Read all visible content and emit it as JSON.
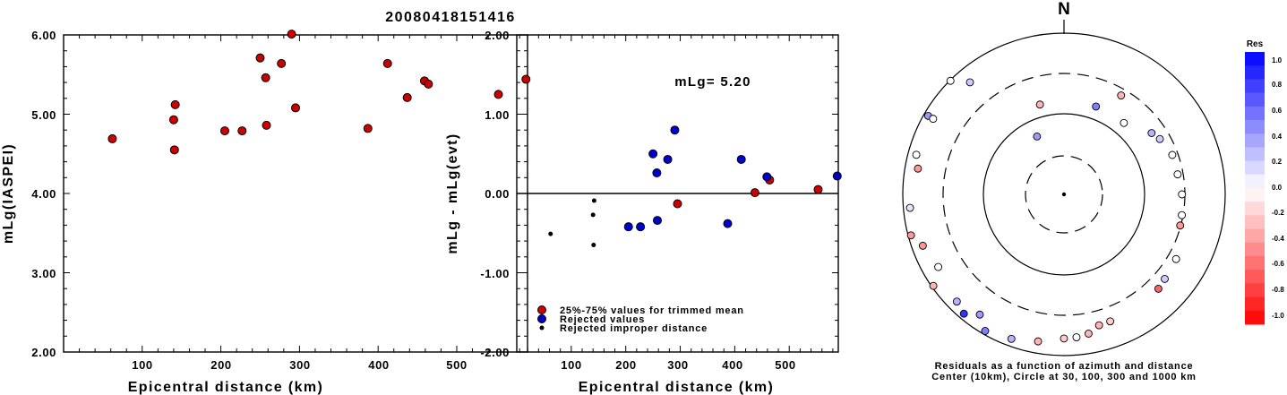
{
  "chart_data": [
    {
      "type": "scatter",
      "title": "20080418151416",
      "xlabel": "Epicentral distance (km)",
      "ylabel": "mLg(IASPEI)",
      "xlim": [
        0,
        590
      ],
      "ylim": [
        2.0,
        6.0
      ],
      "xticks": [
        "100",
        "200",
        "300",
        "400",
        "500"
      ],
      "yticks": [
        "2.00",
        "3.00",
        "4.00",
        "5.00",
        "6.00"
      ],
      "marker_color": "#cc0000",
      "points": [
        [
          62,
          4.69
        ],
        [
          140,
          4.93
        ],
        [
          142,
          5.12
        ],
        [
          141,
          4.55
        ],
        [
          205,
          4.79
        ],
        [
          227,
          4.79
        ],
        [
          250,
          5.71
        ],
        [
          257,
          5.46
        ],
        [
          258,
          4.86
        ],
        [
          277,
          5.64
        ],
        [
          290,
          6.01
        ],
        [
          295,
          5.08
        ],
        [
          387,
          4.82
        ],
        [
          412,
          5.64
        ],
        [
          437,
          5.21
        ],
        [
          459,
          5.42
        ],
        [
          464,
          5.38
        ],
        [
          553,
          5.25
        ],
        [
          588,
          5.44
        ]
      ]
    },
    {
      "type": "scatter",
      "xlabel": "Epicentral distance (km)",
      "ylabel": "mLg - mLg(evt)",
      "xlim": [
        0,
        590
      ],
      "ylim": [
        -2.0,
        2.0
      ],
      "xticks": [
        "100",
        "200",
        "300",
        "400",
        "500"
      ],
      "yticks": [
        "-2.00",
        "-1.00",
        "0.00",
        "1.00",
        "2.00"
      ],
      "annotation": "mLg= 5.20",
      "zero_line": true,
      "legend_position": "bottom-left",
      "series": [
        {
          "name": "25%-75% values for trimmed mean",
          "color": "#cc0000",
          "marker": "circle",
          "points": [
            [
              295,
              -0.13
            ],
            [
              437,
              0.01
            ],
            [
              464,
              0.17
            ],
            [
              553,
              0.05
            ]
          ]
        },
        {
          "name": "Rejected values",
          "color": "#0000cc",
          "marker": "circle",
          "points": [
            [
              205,
              -0.42
            ],
            [
              227,
              -0.42
            ],
            [
              250,
              0.5
            ],
            [
              257,
              0.26
            ],
            [
              258,
              -0.34
            ],
            [
              277,
              0.43
            ],
            [
              290,
              0.8
            ],
            [
              387,
              -0.38
            ],
            [
              412,
              0.43
            ],
            [
              459,
              0.21
            ],
            [
              588,
              0.22
            ]
          ]
        },
        {
          "name": "Rejected improper distance",
          "color": "#000000",
          "marker": "dot",
          "points": [
            [
              62,
              -0.51
            ],
            [
              140,
              -0.27
            ],
            [
              142,
              -0.09
            ],
            [
              141,
              -0.65
            ]
          ]
        }
      ]
    },
    {
      "type": "scatter",
      "subtype": "polar",
      "north_label": "N",
      "caption_lines": [
        "Residuals as a function of azimuth and distance",
        "Center (10km), Circle at 30, 100, 300 and 1000 km"
      ],
      "rings_km": [
        30,
        100,
        300,
        1000
      ],
      "colorbar": {
        "title": "Res",
        "ticks": [
          "1.0",
          "0.8",
          "0.6",
          "0.4",
          "0.2",
          "0.0",
          "-0.2",
          "-0.4",
          "-0.6",
          "-0.8",
          "-1.0"
        ],
        "max_color": "#0000ff",
        "zero_color": "#ffffff",
        "min_color": "#ff0000"
      },
      "stations": [
        {
          "azimuth_deg": 335,
          "residual": 0.4
        },
        {
          "azimuth_deg": 345,
          "residual": -0.3
        },
        {
          "azimuth_deg": 20,
          "residual": 0.5
        },
        {
          "azimuth_deg": 40,
          "residual": 0.0
        },
        {
          "azimuth_deg": 55,
          "residual": 0.3
        },
        {
          "azimuth_deg": 60,
          "residual": 0.2
        },
        {
          "azimuth_deg": 30,
          "residual": -0.3
        },
        {
          "azimuth_deg": 70,
          "residual": 0.0
        },
        {
          "azimuth_deg": 80,
          "residual": 0.0
        },
        {
          "azimuth_deg": 90,
          "residual": 0.0
        },
        {
          "azimuth_deg": 100,
          "residual": 0.0
        },
        {
          "azimuth_deg": 105,
          "residual": -0.4
        },
        {
          "azimuth_deg": 120,
          "residual": 0.0
        },
        {
          "azimuth_deg": 130,
          "residual": 0.2
        },
        {
          "azimuth_deg": 135,
          "residual": -0.6
        },
        {
          "azimuth_deg": 160,
          "residual": -0.2
        },
        {
          "azimuth_deg": 165,
          "residual": -0.3
        },
        {
          "azimuth_deg": 170,
          "residual": -0.3
        },
        {
          "azimuth_deg": 175,
          "residual": 0.0
        },
        {
          "azimuth_deg": 180,
          "residual": -0.2
        },
        {
          "azimuth_deg": 190,
          "residual": -0.3
        },
        {
          "azimuth_deg": 200,
          "residual": 0.3
        },
        {
          "azimuth_deg": 210,
          "residual": 0.5
        },
        {
          "azimuth_deg": 215,
          "residual": 0.4
        },
        {
          "azimuth_deg": 225,
          "residual": 0.3
        },
        {
          "azimuth_deg": 220,
          "residual": 0.8
        },
        {
          "azimuth_deg": 235,
          "residual": -0.3
        },
        {
          "azimuth_deg": 240,
          "residual": 0.0
        },
        {
          "azimuth_deg": 250,
          "residual": -0.4
        },
        {
          "azimuth_deg": 265,
          "residual": 0.1
        },
        {
          "azimuth_deg": 255,
          "residual": -0.4
        },
        {
          "azimuth_deg": 280,
          "residual": -0.4
        },
        {
          "azimuth_deg": 285,
          "residual": 0.0
        },
        {
          "azimuth_deg": 300,
          "residual": 0.4
        },
        {
          "azimuth_deg": 315,
          "residual": 0.0
        },
        {
          "azimuth_deg": 320,
          "residual": 0.2
        },
        {
          "azimuth_deg": 300,
          "residual": 0.0
        }
      ]
    }
  ]
}
